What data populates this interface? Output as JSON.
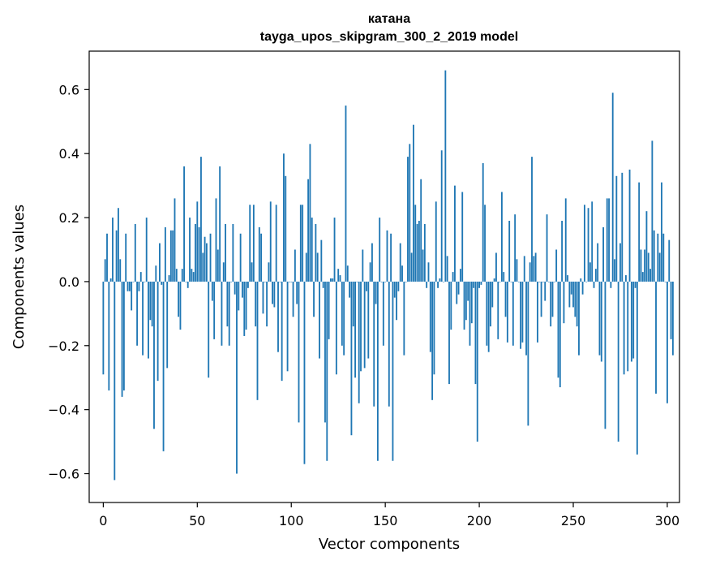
{
  "chart_data": {
    "type": "bar",
    "title": "катана",
    "subtitle": "tayga_upos_skipgram_300_2_2019 model",
    "xlabel": "Vector components",
    "ylabel": "Components values",
    "xlim": [
      -7.5,
      306.5
    ],
    "ylim": [
      -0.69,
      0.72
    ],
    "xticks": [
      0,
      50,
      100,
      150,
      200,
      250,
      300
    ],
    "xtick_labels": [
      "0",
      "50",
      "100",
      "150",
      "200",
      "250",
      "300"
    ],
    "yticks": [
      -0.6,
      -0.4,
      -0.2,
      0.0,
      0.2,
      0.4,
      0.6
    ],
    "ytick_labels": [
      "−0.6",
      "−0.4",
      "−0.2",
      "0.0",
      "0.2",
      "0.4",
      "0.6"
    ],
    "color": "#1f77b4",
    "values": [
      -0.29,
      0.07,
      0.15,
      -0.34,
      0.01,
      0.2,
      -0.62,
      0.16,
      0.23,
      0.07,
      -0.36,
      -0.34,
      0.15,
      -0.03,
      -0.03,
      -0.09,
      0.0,
      0.18,
      -0.2,
      -0.03,
      0.03,
      -0.23,
      0.0,
      0.2,
      -0.24,
      -0.12,
      -0.14,
      -0.46,
      0.05,
      -0.31,
      0.12,
      -0.01,
      -0.53,
      0.17,
      -0.27,
      0.02,
      0.16,
      0.16,
      0.26,
      0.04,
      -0.11,
      -0.15,
      0.04,
      0.36,
      0.0,
      -0.02,
      0.2,
      0.04,
      0.03,
      0.18,
      0.25,
      0.17,
      0.39,
      0.09,
      0.14,
      0.12,
      -0.3,
      0.15,
      -0.06,
      -0.18,
      0.26,
      0.1,
      0.36,
      -0.2,
      0.06,
      0.18,
      -0.14,
      -0.2,
      0.0,
      0.18,
      -0.04,
      -0.6,
      -0.09,
      0.15,
      -0.05,
      -0.17,
      -0.15,
      -0.02,
      0.24,
      0.06,
      0.24,
      -0.14,
      -0.37,
      0.17,
      0.15,
      -0.1,
      0.0,
      -0.14,
      0.06,
      0.25,
      -0.07,
      -0.08,
      0.24,
      -0.22,
      0.0,
      -0.31,
      0.4,
      0.33,
      -0.28,
      0.0,
      0.0,
      -0.11,
      0.1,
      -0.07,
      -0.44,
      0.24,
      0.24,
      -0.57,
      0.09,
      0.32,
      0.43,
      0.2,
      -0.11,
      0.18,
      0.09,
      -0.24,
      0.13,
      -0.02,
      -0.44,
      -0.56,
      -0.18,
      0.01,
      0.01,
      0.2,
      -0.29,
      0.04,
      0.02,
      -0.2,
      -0.23,
      0.55,
      0.05,
      -0.05,
      -0.48,
      -0.14,
      -0.3,
      0.0,
      -0.38,
      -0.28,
      0.1,
      -0.27,
      -0.03,
      -0.24,
      0.06,
      0.12,
      -0.39,
      -0.07,
      -0.56,
      0.2,
      0.0,
      -0.2,
      0.0,
      0.16,
      -0.39,
      0.15,
      -0.56,
      -0.05,
      -0.12,
      -0.03,
      0.12,
      0.05,
      -0.23,
      0.0,
      0.39,
      0.43,
      0.09,
      0.49,
      0.24,
      0.18,
      0.19,
      0.32,
      0.1,
      0.18,
      -0.02,
      0.06,
      -0.22,
      -0.37,
      -0.29,
      0.25,
      -0.02,
      0.01,
      0.41,
      0.0,
      0.66,
      0.08,
      -0.32,
      -0.15,
      0.03,
      0.3,
      -0.07,
      -0.04,
      0.04,
      0.28,
      -0.15,
      -0.12,
      -0.06,
      -0.2,
      -0.13,
      -0.02,
      -0.32,
      -0.5,
      -0.02,
      -0.01,
      0.37,
      0.24,
      -0.2,
      -0.22,
      -0.14,
      -0.08,
      0.01,
      0.09,
      -0.18,
      0.0,
      0.28,
      0.03,
      -0.11,
      -0.19,
      0.19,
      0.0,
      -0.2,
      0.21,
      0.07,
      0.0,
      -0.21,
      -0.19,
      0.08,
      -0.23,
      -0.45,
      0.06,
      0.39,
      0.08,
      0.09,
      -0.19,
      0.0,
      -0.11,
      0.0,
      -0.06,
      0.21,
      0.0,
      -0.14,
      -0.11,
      0.0,
      0.1,
      -0.3,
      -0.33,
      0.19,
      -0.13,
      0.26,
      0.02,
      -0.08,
      -0.04,
      -0.08,
      -0.11,
      -0.14,
      -0.23,
      0.01,
      -0.04,
      0.24,
      0.0,
      0.23,
      0.06,
      0.25,
      -0.02,
      0.04,
      0.12,
      -0.23,
      -0.25,
      0.17,
      -0.46,
      0.26,
      0.26,
      -0.02,
      0.59,
      0.07,
      0.33,
      -0.5,
      0.12,
      0.34,
      -0.29,
      0.02,
      -0.28,
      0.35,
      -0.25,
      -0.24,
      -0.02,
      -0.54,
      0.31,
      0.1,
      0.03,
      0.1,
      0.22,
      0.09,
      0.04,
      0.44,
      0.16,
      -0.35,
      0.15,
      0.09,
      0.31,
      0.15,
      0.0,
      -0.38,
      0.13,
      -0.18,
      -0.23
    ]
  }
}
